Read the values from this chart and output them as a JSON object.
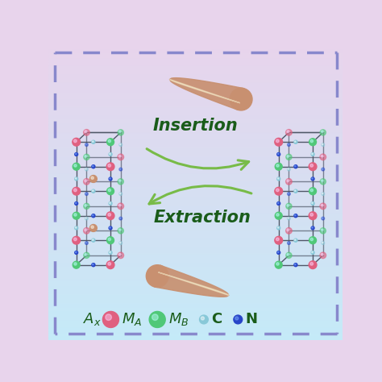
{
  "bg_top_color": "#e8d4ec",
  "bg_bottom_color": "#c4eaf8",
  "border_color": "#8888cc",
  "text_color": "#1a5c1a",
  "insertion_label": "Insertion",
  "extraction_label": "Extraction",
  "atom_colors": {
    "MA": "#e06080",
    "MB": "#50c878",
    "C": "#88c8d8",
    "N": "#2845c8",
    "ion": "#c89070"
  },
  "structure_color": "#505868",
  "arrow_color": "#78bb48"
}
